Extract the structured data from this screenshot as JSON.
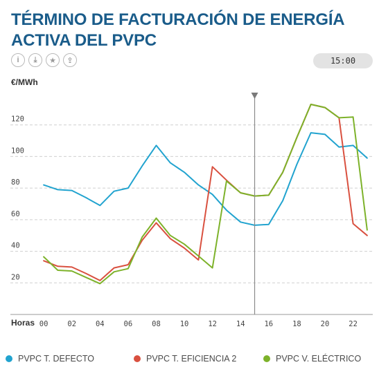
{
  "header": {
    "title": "TÉRMINO DE FACTURACIÓN DE ENERGÍA ACTIVA DEL PVPC",
    "time_badge": "15:00",
    "icons": [
      "info-icon",
      "download-icon",
      "star-icon",
      "share-icon"
    ],
    "icon_glyphs": [
      "i",
      "⤓",
      "★",
      "⇪"
    ]
  },
  "chart_data": {
    "type": "line",
    "title": "TÉRMINO DE FACTURACIÓN DE ENERGÍA ACTIVA DEL PVPC",
    "ylabel": "€/MWh",
    "xlabel": "Horas",
    "x": [
      0,
      1,
      2,
      3,
      4,
      5,
      6,
      7,
      8,
      9,
      10,
      11,
      12,
      13,
      14,
      15,
      16,
      17,
      18,
      19,
      20,
      21,
      22,
      23
    ],
    "x_tick_labels": [
      "00",
      "02",
      "04",
      "06",
      "08",
      "10",
      "12",
      "14",
      "16",
      "18",
      "20",
      "22"
    ],
    "x_tick_values": [
      0,
      2,
      4,
      6,
      8,
      10,
      12,
      14,
      16,
      18,
      20,
      22
    ],
    "y_ticks": [
      20,
      40,
      60,
      80,
      100,
      120
    ],
    "ylim": [
      0,
      140
    ],
    "xlim": [
      -0.4,
      23.4
    ],
    "grid": "horizontal-dashed",
    "cursor_x": 15,
    "legend_position": "bottom",
    "series": [
      {
        "name": "PVPC T. DEFECTO",
        "color": "#21a3cf",
        "values": [
          82,
          79,
          78.5,
          74,
          69,
          78,
          80,
          94,
          107,
          96,
          90,
          82,
          76,
          66,
          58.5,
          56.5,
          57,
          72,
          95,
          115,
          114,
          106,
          107,
          99
        ]
      },
      {
        "name": "PVPC T. EFICIENCIA 2",
        "color": "#d9503f",
        "values": [
          34,
          30.5,
          30,
          26,
          21.5,
          29.5,
          31.5,
          47,
          58,
          48,
          42,
          34.5,
          93.5,
          85,
          77,
          75,
          75.5,
          90,
          112,
          133,
          131,
          124.5,
          57.5,
          50
        ]
      },
      {
        "name": "PVPC V. ELÉCTRICO",
        "color": "#7db22a",
        "values": [
          36.5,
          28,
          27.5,
          23.5,
          19.5,
          27,
          29,
          49,
          61,
          50,
          44.5,
          37,
          29.5,
          84.5,
          77,
          75,
          75.5,
          90,
          112,
          133,
          131,
          124.5,
          125,
          53.5
        ]
      }
    ]
  }
}
